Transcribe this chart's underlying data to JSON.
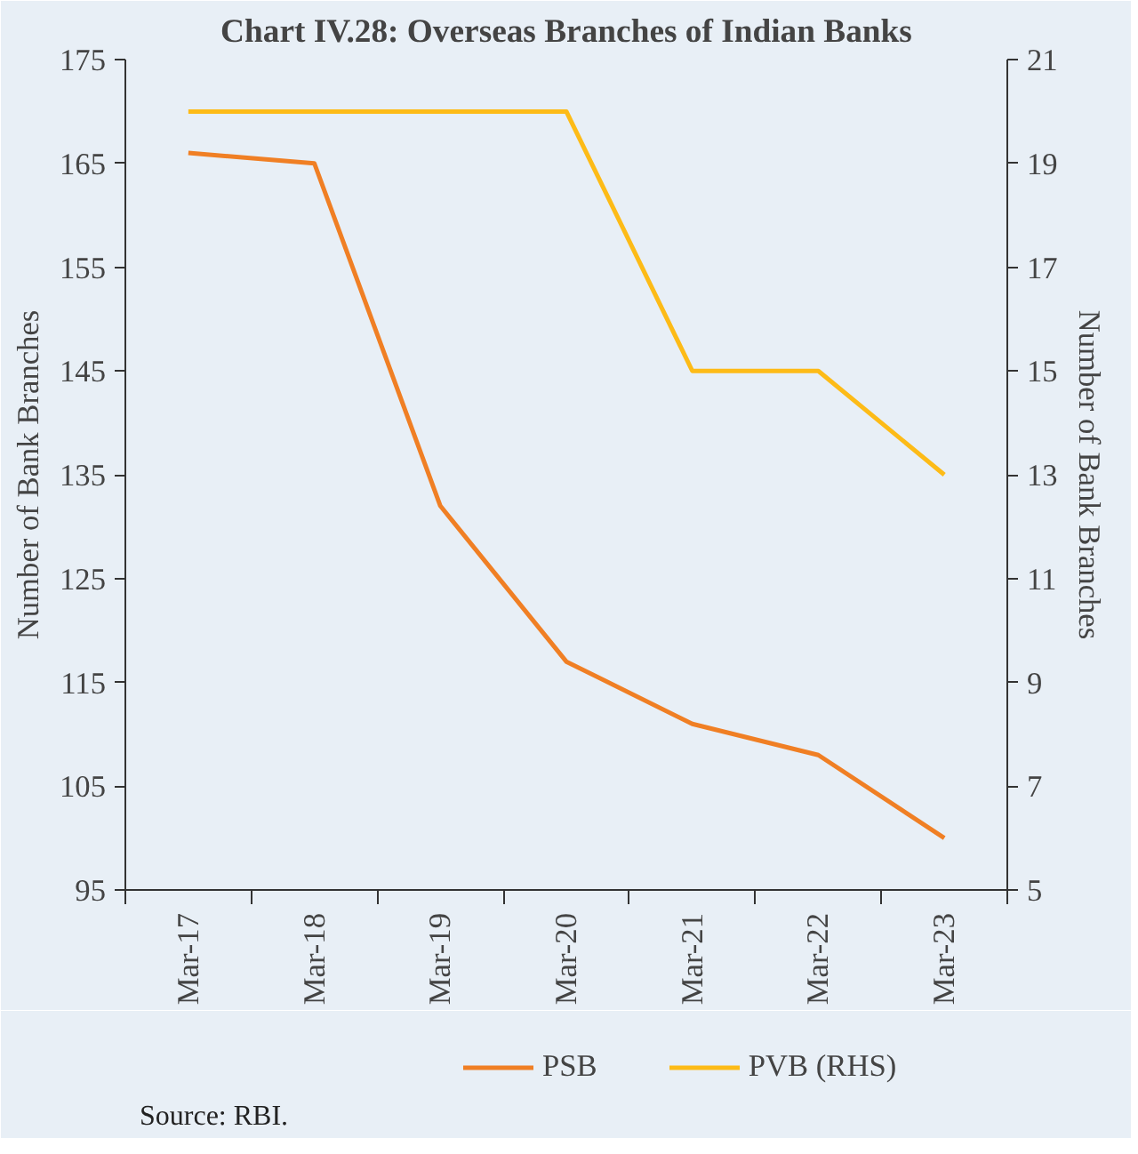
{
  "chart_data": {
    "type": "line",
    "title": "Chart IV.28: Overseas Branches of Indian Banks",
    "categories": [
      "Mar-17",
      "Mar-18",
      "Mar-19",
      "Mar-20",
      "Mar-21",
      "Mar-22",
      "Mar-23"
    ],
    "series": [
      {
        "name": "PSB",
        "color": "#f07f24",
        "values": [
          166,
          165,
          132,
          117,
          111,
          108,
          100
        ]
      },
      {
        "name": "PVB (RHS)",
        "color": "#fdbb17",
        "axis": "y2",
        "values": [
          20,
          20,
          20,
          20,
          15,
          15,
          13
        ]
      }
    ],
    "ylabel": "Number of Bank Branches",
    "y2label": "Number of Bank Branches",
    "ylim": [
      95,
      175
    ],
    "yticks": [
      95,
      105,
      115,
      125,
      135,
      145,
      155,
      165,
      175
    ],
    "y2lim": [
      5,
      21
    ],
    "y2ticks": [
      5,
      7,
      9,
      11,
      13,
      15,
      17,
      19,
      21
    ],
    "grid": false,
    "legend": "bottom",
    "marker": "none",
    "line_style": "solid",
    "annotations": [
      "Source: RBI."
    ]
  }
}
